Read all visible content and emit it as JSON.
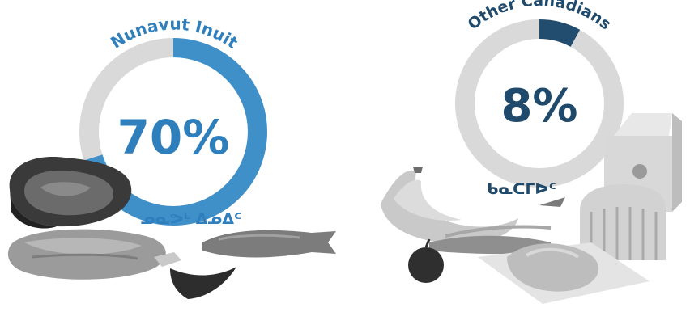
{
  "colors": {
    "nunavut_ring": "#3f8fc9",
    "nunavut_text": "#2f7fbd",
    "other_ring": "#234d6e",
    "other_text": "#1f4a6b",
    "remainder": "#d9d9d9"
  },
  "nunavut": {
    "title": "Nunavut Inuit",
    "percent_label": "70%",
    "percent_value": 70,
    "syllabics": "ᓄᓇᕗᒻ ᐃᓄᐃᑦ"
  },
  "other": {
    "title": "Other Canadians",
    "percent_label": "8%",
    "percent_value": 8,
    "syllabics": "ᑲᓇᑕᒥᐅᑦ"
  }
}
